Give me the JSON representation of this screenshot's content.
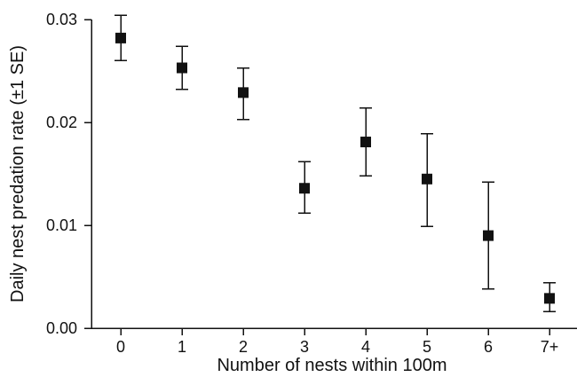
{
  "chart_data": {
    "type": "scatter",
    "categories": [
      "0",
      "1",
      "2",
      "3",
      "4",
      "5",
      "6",
      "7+"
    ],
    "series": [
      {
        "values": [
          0.0282,
          0.0253,
          0.0229,
          0.0136,
          0.0181,
          0.0145,
          0.009,
          0.0029
        ],
        "error_upper": [
          0.0304,
          0.0274,
          0.0253,
          0.0162,
          0.0214,
          0.0189,
          0.0142,
          0.0044
        ],
        "error_lower": [
          0.026,
          0.0232,
          0.0203,
          0.0112,
          0.0148,
          0.0099,
          0.0038,
          0.0016
        ]
      }
    ],
    "xlabel": "Number of nests within 100m",
    "ylabel": "Daily nest predation rate (±1 SE)",
    "ylim": [
      0.0,
      0.03
    ],
    "yticks": [
      "0.00",
      "0.01",
      "0.02",
      "0.03"
    ],
    "grid": false,
    "legend": "none"
  }
}
